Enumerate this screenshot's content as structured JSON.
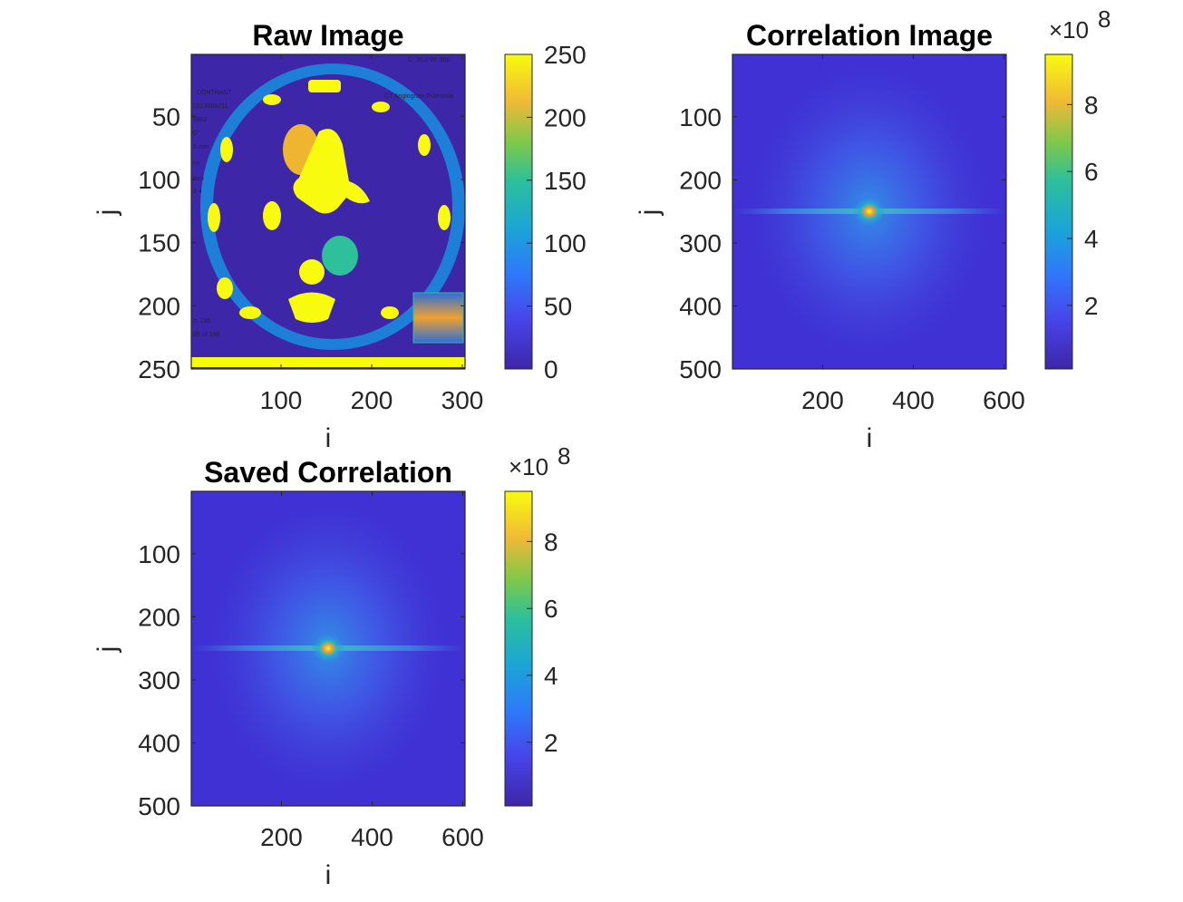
{
  "chart_data": [
    {
      "type": "heatmap",
      "title": "Raw Image",
      "xlabel": "i",
      "ylabel": "j",
      "xlim": [
        1,
        303
      ],
      "ylim": [
        1,
        250
      ],
      "x_ticks": [
        100,
        200,
        300
      ],
      "y_ticks": [
        50,
        100,
        150,
        200,
        250
      ],
      "colorbar": {
        "range": [
          0,
          250
        ],
        "ticks": [
          0,
          50,
          100,
          150,
          200,
          250
        ],
        "multiplier": ""
      },
      "overlay_text": [
        "C: 35.0 W: 350",
        "CONTRAST",
        "L013866211",
        "5862",
        "0°",
        "5 mm",
        "ns",
        "mm",
        "3 4",
        "CT Angiogram Pulmonar",
        "c: 135",
        "05 of 198"
      ]
    },
    {
      "type": "heatmap",
      "title": "Correlation Image",
      "xlabel": "i",
      "ylabel": "j",
      "xlim": [
        1,
        605
      ],
      "ylim": [
        1,
        500
      ],
      "x_ticks": [
        200,
        400,
        600
      ],
      "y_ticks": [
        100,
        200,
        300,
        400,
        500
      ],
      "peak": {
        "i": 303,
        "j": 250,
        "value": 9.5
      },
      "colorbar": {
        "range": [
          0.1,
          9.5
        ],
        "ticks": [
          2,
          4,
          6,
          8
        ],
        "multiplier": "×10",
        "exponent": "8"
      }
    },
    {
      "type": "heatmap",
      "title": "Saved Correlation",
      "xlabel": "i",
      "ylabel": "j",
      "xlim": [
        1,
        605
      ],
      "ylim": [
        1,
        500
      ],
      "x_ticks": [
        200,
        400,
        600
      ],
      "y_ticks": [
        100,
        200,
        300,
        400,
        500
      ],
      "peak": {
        "i": 303,
        "j": 250,
        "value": 9.5
      },
      "colorbar": {
        "range": [
          0.1,
          9.5
        ],
        "ticks": [
          2,
          4,
          6,
          8
        ],
        "multiplier": "×10",
        "exponent": "8"
      }
    }
  ],
  "colors": {
    "parula_low": "#3e26a8",
    "parula_mid_low": "#1f8ed6",
    "parula_mid": "#29bcb0",
    "parula_high": "#f2b930",
    "parula_top": "#f9fb0e"
  }
}
